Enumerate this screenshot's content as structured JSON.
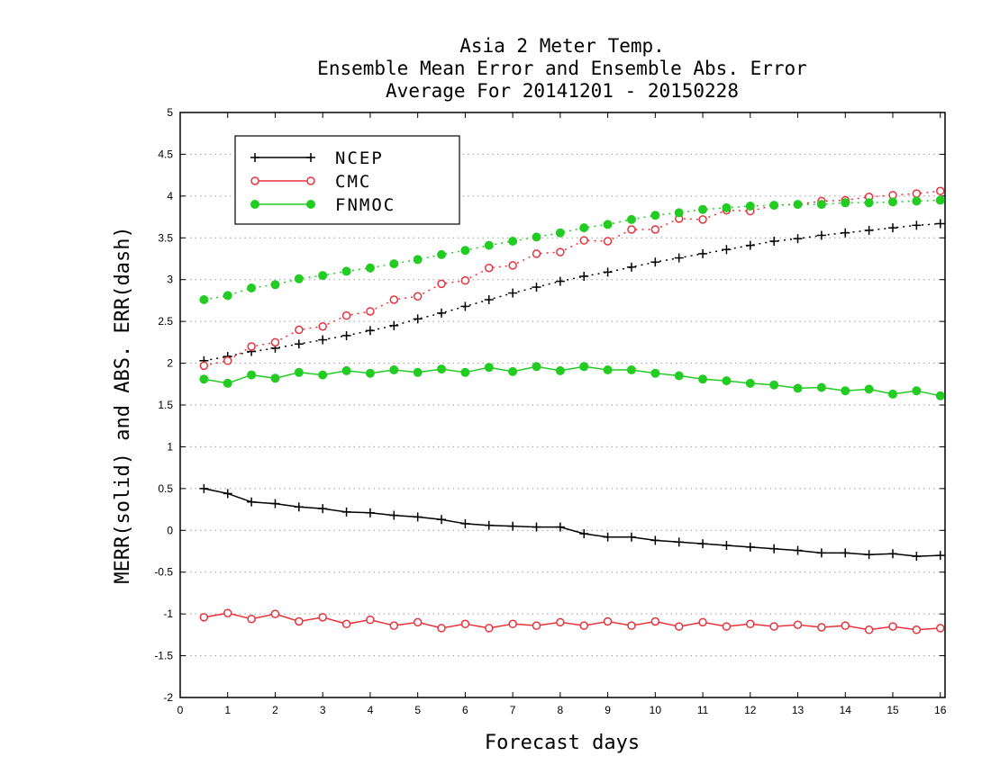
{
  "chart_data": {
    "type": "line",
    "title": [
      "Asia 2 Meter Temp.",
      "Ensemble Mean Error and Ensemble Abs. Error",
      "Average For 20141201 - 20150228"
    ],
    "xlabel": "Forecast days",
    "ylabel": "MERR(solid) and ABS. ERR(dash)",
    "xlim": [
      0,
      16.1
    ],
    "ylim": [
      -2,
      5
    ],
    "xticks": [
      0,
      1,
      2,
      3,
      4,
      5,
      6,
      7,
      8,
      9,
      10,
      11,
      12,
      13,
      14,
      15,
      16
    ],
    "yticks": [
      -2,
      -1.5,
      -1,
      -0.5,
      0,
      0.5,
      1,
      1.5,
      2,
      2.5,
      3,
      3.5,
      4,
      4.5,
      5
    ],
    "ytick_labels": [
      "-2",
      "-1.5",
      "-1",
      "-0.5",
      "0",
      "0.5",
      "1",
      "1.5",
      "2",
      "2.5",
      "3",
      "3.5",
      "4",
      "4.5",
      "5"
    ],
    "grid": "horizontal dotted",
    "legend_placement": "top-left",
    "legend": [
      {
        "name": "NCEP",
        "color": "#000000",
        "marker": "plus"
      },
      {
        "name": "CMC",
        "color": "#e8323c",
        "marker": "open-circle"
      },
      {
        "name": "FNMOC",
        "color": "#22cc22",
        "marker": "filled-circle"
      }
    ],
    "x": [
      0.5,
      1.0,
      1.5,
      2.0,
      2.5,
      3.0,
      3.5,
      4.0,
      4.5,
      5.0,
      5.5,
      6.0,
      6.5,
      7.0,
      7.5,
      8.0,
      8.5,
      9.0,
      9.5,
      10.0,
      10.5,
      11.0,
      11.5,
      12.0,
      12.5,
      13.0,
      13.5,
      14.0,
      14.5,
      15.0,
      15.5,
      16.0
    ],
    "series": [
      {
        "name": "NCEP",
        "style": "solid",
        "values": [
          0.5,
          0.44,
          0.34,
          0.32,
          0.28,
          0.26,
          0.22,
          0.21,
          0.18,
          0.16,
          0.13,
          0.08,
          0.06,
          0.05,
          0.04,
          0.04,
          -0.04,
          -0.08,
          -0.08,
          -0.12,
          -0.14,
          -0.16,
          -0.18,
          -0.2,
          -0.22,
          -0.24,
          -0.27,
          -0.27,
          -0.29,
          -0.28,
          -0.31,
          -0.3
        ]
      },
      {
        "name": "NCEP",
        "style": "dash",
        "values": [
          2.03,
          2.08,
          2.14,
          2.18,
          2.23,
          2.28,
          2.33,
          2.39,
          2.45,
          2.53,
          2.6,
          2.68,
          2.76,
          2.84,
          2.91,
          2.98,
          3.04,
          3.09,
          3.15,
          3.21,
          3.26,
          3.31,
          3.36,
          3.41,
          3.46,
          3.49,
          3.53,
          3.56,
          3.59,
          3.62,
          3.65,
          3.67
        ]
      },
      {
        "name": "CMC",
        "style": "solid",
        "values": [
          -1.04,
          -0.99,
          -1.06,
          -1.0,
          -1.09,
          -1.04,
          -1.12,
          -1.07,
          -1.14,
          -1.1,
          -1.17,
          -1.12,
          -1.17,
          -1.12,
          -1.14,
          -1.1,
          -1.14,
          -1.09,
          -1.14,
          -1.09,
          -1.15,
          -1.1,
          -1.15,
          -1.12,
          -1.15,
          -1.13,
          -1.16,
          -1.14,
          -1.19,
          -1.15,
          -1.19,
          -1.17
        ]
      },
      {
        "name": "CMC",
        "style": "dash",
        "values": [
          1.97,
          2.03,
          2.2,
          2.25,
          2.4,
          2.44,
          2.57,
          2.62,
          2.76,
          2.8,
          2.95,
          2.99,
          3.14,
          3.17,
          3.31,
          3.33,
          3.47,
          3.46,
          3.6,
          3.6,
          3.73,
          3.72,
          3.83,
          3.82,
          3.89,
          3.9,
          3.94,
          3.95,
          3.99,
          4.01,
          4.03,
          4.06
        ]
      },
      {
        "name": "FNMOC",
        "style": "solid",
        "values": [
          1.81,
          1.76,
          1.86,
          1.82,
          1.89,
          1.86,
          1.91,
          1.88,
          1.92,
          1.89,
          1.93,
          1.89,
          1.95,
          1.9,
          1.96,
          1.91,
          1.96,
          1.92,
          1.92,
          1.88,
          1.85,
          1.81,
          1.79,
          1.76,
          1.74,
          1.7,
          1.71,
          1.67,
          1.69,
          1.63,
          1.67,
          1.61
        ]
      },
      {
        "name": "FNMOC",
        "style": "dash",
        "values": [
          2.76,
          2.81,
          2.9,
          2.94,
          3.01,
          3.05,
          3.1,
          3.14,
          3.19,
          3.24,
          3.3,
          3.35,
          3.41,
          3.46,
          3.51,
          3.56,
          3.62,
          3.66,
          3.72,
          3.77,
          3.8,
          3.84,
          3.86,
          3.88,
          3.89,
          3.9,
          3.9,
          3.92,
          3.92,
          3.93,
          3.94,
          3.95
        ]
      }
    ]
  }
}
